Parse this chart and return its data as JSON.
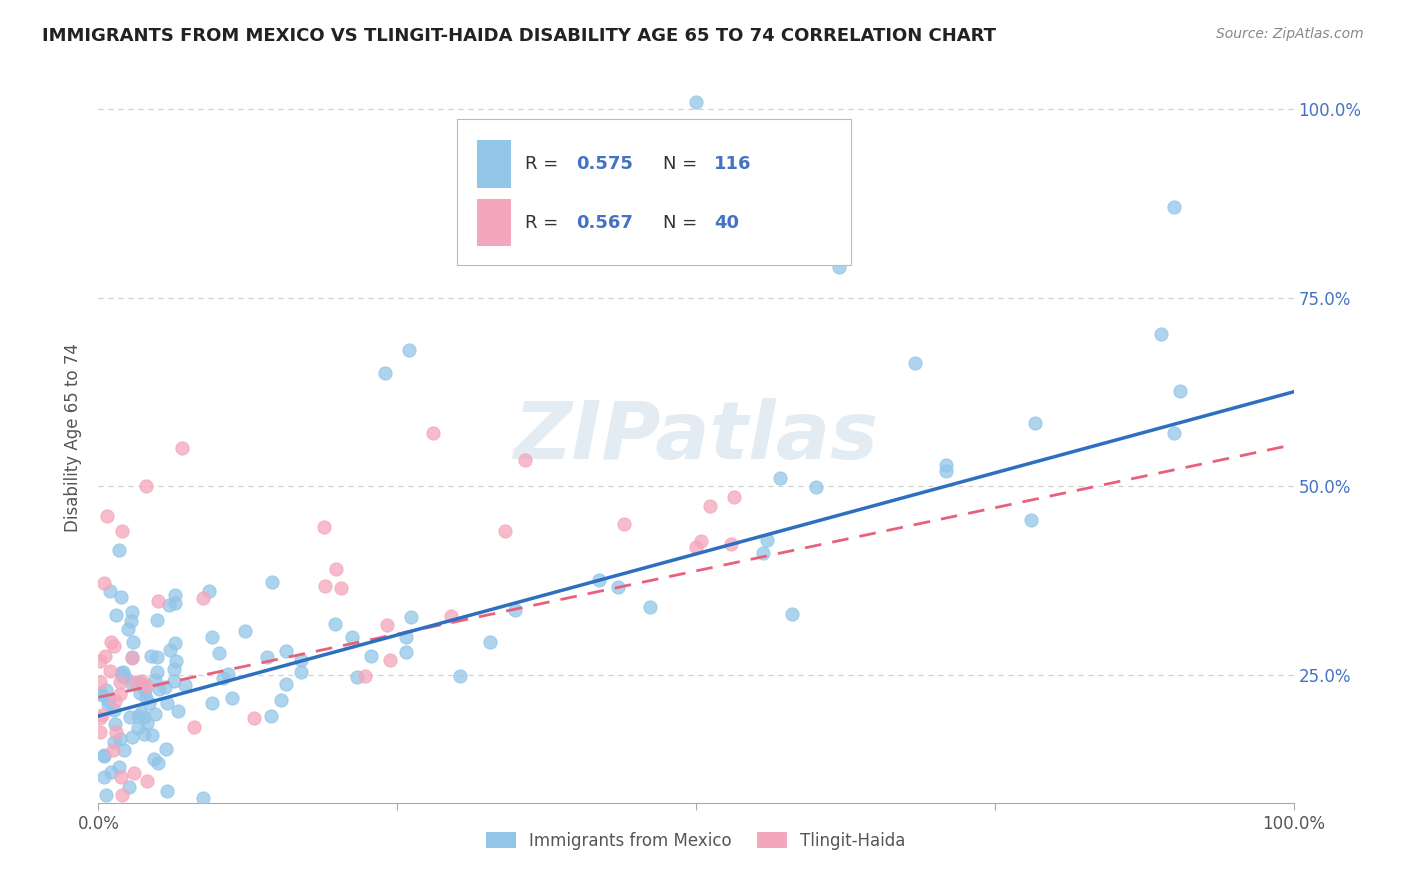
{
  "title": "IMMIGRANTS FROM MEXICO VS TLINGIT-HAIDA DISABILITY AGE 65 TO 74 CORRELATION CHART",
  "source": "Source: ZipAtlas.com",
  "ylabel": "Disability Age 65 to 74",
  "legend_blue_r": "0.575",
  "legend_blue_n": "116",
  "legend_pink_r": "0.567",
  "legend_pink_n": "40",
  "legend_label_blue": "Immigrants from Mexico",
  "legend_label_pink": "Tlingit-Haida",
  "blue_color": "#92C5E8",
  "pink_color": "#F4A6BC",
  "blue_line_color": "#2E6FBF",
  "pink_line_color": "#E8607A",
  "text_color_blue": "#4472c4",
  "watermark": "ZIPatlas",
  "background_color": "#ffffff",
  "grid_color": "#d0d0d0",
  "blue_line_y0": 0.195,
  "blue_line_y1": 0.625,
  "pink_line_y0": 0.22,
  "pink_line_y1": 0.555,
  "xlim": [
    0.0,
    1.0
  ],
  "ylim": [
    0.08,
    1.05
  ],
  "ytick_positions": [
    0.25,
    0.5,
    0.75,
    1.0
  ],
  "ytick_labels": [
    "25.0%",
    "50.0%",
    "75.0%",
    "100.0%"
  ]
}
